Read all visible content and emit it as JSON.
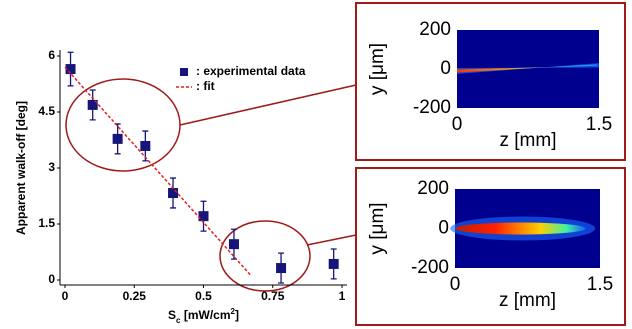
{
  "chart_data": [
    {
      "type": "scatter",
      "ylabel": "Apparent walk-off [deg]",
      "xlabel": [
        "S",
        "c",
        " [mW/cm",
        "2",
        "]"
      ],
      "xlim": [
        0,
        1
      ],
      "xticks": [
        0,
        0.25,
        0.5,
        0.75,
        1
      ],
      "ylim": [
        0,
        6
      ],
      "yticks": [
        0,
        1.5,
        3,
        4.5,
        6
      ],
      "series": [
        {
          "name": ": experimental data",
          "color": "#16167a",
          "kind": "points",
          "x": [
            0.02,
            0.1,
            0.19,
            0.29,
            0.39,
            0.5,
            0.61,
            0.78,
            0.97
          ],
          "values": [
            5.65,
            4.69,
            3.78,
            3.59,
            2.33,
            1.71,
            0.96,
            0.32,
            0.43
          ],
          "errors": [
            0.45,
            0.4,
            0.4,
            0.4,
            0.4,
            0.4,
            0.4,
            0.4,
            0.4
          ]
        },
        {
          "name": ": fit",
          "color": "#e02020",
          "kind": "dashed-line",
          "x": [
            0,
            0.67
          ],
          "values": [
            5.7,
            0.13
          ]
        }
      ]
    },
    {
      "type": "heatmap",
      "ylabel": "y [μm]",
      "xlabel": "z [mm]",
      "xlim": [
        0,
        1.5
      ],
      "xticks": [
        0,
        1.5
      ],
      "ylim": [
        -200,
        200
      ],
      "yticks": [
        -200,
        0,
        200
      ]
    },
    {
      "type": "heatmap",
      "ylabel": "y [μm]",
      "xlabel": "z [mm]",
      "xlim": [
        0,
        1.5
      ],
      "xticks": [
        0,
        1.5
      ],
      "ylim": [
        -200,
        200
      ],
      "yticks": [
        -200,
        0,
        200
      ]
    }
  ]
}
